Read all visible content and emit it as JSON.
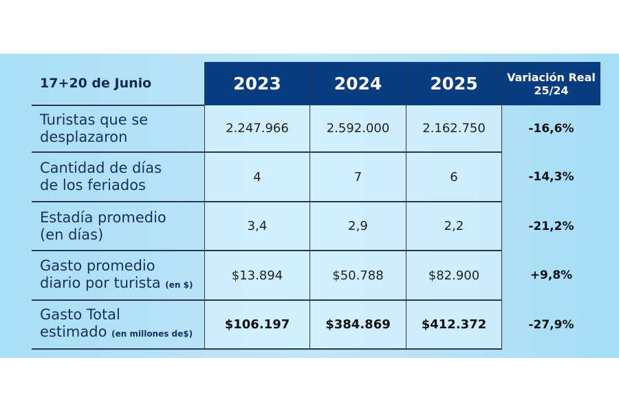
{
  "table": {
    "corner": "17+20 de Junio",
    "headers": [
      "2023",
      "2024",
      "2025"
    ],
    "variation_header": [
      "Variación Real",
      "25/24"
    ],
    "rows": [
      {
        "label": [
          "Turistas que se",
          "desplazaron"
        ],
        "unit": "",
        "values": [
          "2.247.966",
          "2.592.000",
          "2.162.750"
        ],
        "variation": "-16,6%",
        "bold": false
      },
      {
        "label": [
          "Cantidad de días",
          "de los feriados"
        ],
        "unit": "",
        "values": [
          "4",
          "7",
          "6"
        ],
        "variation": "-14,3%",
        "bold": false
      },
      {
        "label": [
          "Estadía promedio",
          "(en días)"
        ],
        "unit": "",
        "values": [
          "3,4",
          "2,9",
          "2,2"
        ],
        "variation": "-21,2%",
        "bold": false
      },
      {
        "label": [
          "Gasto promedio",
          "diario por turista"
        ],
        "unit": "(en $)",
        "values": [
          "$13.894",
          "$50.788",
          "$82.900"
        ],
        "variation": "+9,8%",
        "bold": false
      },
      {
        "label": [
          "Gasto Total",
          "estimado"
        ],
        "unit": "(en millones de$)",
        "values": [
          "$106.197",
          "$384.869",
          "$412.372"
        ],
        "variation": "-27,9%",
        "bold": true
      }
    ]
  },
  "colors": {
    "header_bg": "#0a3d7f",
    "panel_bg": "#a9def7",
    "label_text": "#15305e"
  }
}
